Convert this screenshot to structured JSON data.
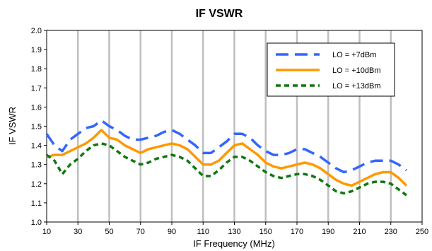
{
  "chart_data": {
    "type": "line",
    "title": "IF VSWR",
    "xlabel": "IF Frequency (MHz)",
    "ylabel": "IF VSWR",
    "xlim": [
      10,
      250
    ],
    "ylim": [
      1.0,
      2.0
    ],
    "x_ticks": [
      10,
      30,
      50,
      70,
      90,
      110,
      130,
      150,
      170,
      190,
      210,
      230,
      250
    ],
    "y_ticks": [
      "1.0",
      "1.1",
      "1.2",
      "1.3",
      "1.4",
      "1.5",
      "1.6",
      "1.7",
      "1.8",
      "1.9",
      "2.0"
    ],
    "grid": "vertical",
    "legend_position": "top-right",
    "series": [
      {
        "name": "LO = +7dBm",
        "color": "#3366ff",
        "dash": "long-dash",
        "x": [
          10,
          15,
          20,
          25,
          30,
          35,
          40,
          45,
          50,
          55,
          60,
          65,
          70,
          75,
          80,
          85,
          90,
          95,
          100,
          105,
          110,
          115,
          120,
          125,
          130,
          135,
          140,
          145,
          150,
          155,
          160,
          165,
          170,
          175,
          180,
          185,
          190,
          195,
          200,
          205,
          210,
          215,
          220,
          225,
          230,
          235,
          240
        ],
        "y": [
          1.46,
          1.4,
          1.37,
          1.43,
          1.46,
          1.49,
          1.5,
          1.53,
          1.5,
          1.48,
          1.45,
          1.43,
          1.43,
          1.44,
          1.45,
          1.47,
          1.48,
          1.46,
          1.43,
          1.4,
          1.36,
          1.36,
          1.39,
          1.42,
          1.46,
          1.46,
          1.44,
          1.4,
          1.37,
          1.35,
          1.35,
          1.36,
          1.38,
          1.38,
          1.36,
          1.34,
          1.31,
          1.28,
          1.26,
          1.27,
          1.29,
          1.31,
          1.32,
          1.32,
          1.32,
          1.3,
          1.27
        ]
      },
      {
        "name": "LO = +10dBm",
        "color": "#ff9900",
        "dash": "solid",
        "x": [
          10,
          15,
          20,
          25,
          30,
          35,
          40,
          45,
          50,
          55,
          60,
          65,
          70,
          75,
          80,
          85,
          90,
          95,
          100,
          105,
          110,
          115,
          120,
          125,
          130,
          135,
          140,
          145,
          150,
          155,
          160,
          165,
          170,
          175,
          180,
          185,
          190,
          195,
          200,
          205,
          210,
          215,
          220,
          225,
          230,
          235,
          240
        ],
        "y": [
          1.34,
          1.35,
          1.35,
          1.37,
          1.39,
          1.41,
          1.44,
          1.48,
          1.44,
          1.43,
          1.4,
          1.38,
          1.36,
          1.38,
          1.39,
          1.4,
          1.41,
          1.4,
          1.38,
          1.34,
          1.3,
          1.3,
          1.32,
          1.36,
          1.4,
          1.41,
          1.38,
          1.35,
          1.31,
          1.29,
          1.28,
          1.29,
          1.3,
          1.31,
          1.3,
          1.28,
          1.25,
          1.22,
          1.2,
          1.19,
          1.21,
          1.23,
          1.25,
          1.26,
          1.26,
          1.23,
          1.19
        ]
      },
      {
        "name": "LO = +13dBm",
        "color": "#117711",
        "dash": "short-dash",
        "x": [
          10,
          15,
          20,
          25,
          30,
          35,
          40,
          45,
          50,
          55,
          60,
          65,
          70,
          75,
          80,
          85,
          90,
          95,
          100,
          105,
          110,
          115,
          120,
          125,
          130,
          135,
          140,
          145,
          150,
          155,
          160,
          165,
          170,
          175,
          180,
          185,
          190,
          195,
          200,
          205,
          210,
          215,
          220,
          225,
          230,
          235,
          240
        ],
        "y": [
          1.35,
          1.32,
          1.25,
          1.3,
          1.33,
          1.37,
          1.4,
          1.41,
          1.4,
          1.37,
          1.34,
          1.32,
          1.3,
          1.31,
          1.33,
          1.34,
          1.35,
          1.34,
          1.32,
          1.28,
          1.24,
          1.24,
          1.27,
          1.31,
          1.34,
          1.34,
          1.32,
          1.29,
          1.26,
          1.24,
          1.23,
          1.24,
          1.25,
          1.25,
          1.24,
          1.22,
          1.19,
          1.16,
          1.15,
          1.16,
          1.18,
          1.2,
          1.21,
          1.21,
          1.2,
          1.17,
          1.14
        ]
      }
    ]
  }
}
